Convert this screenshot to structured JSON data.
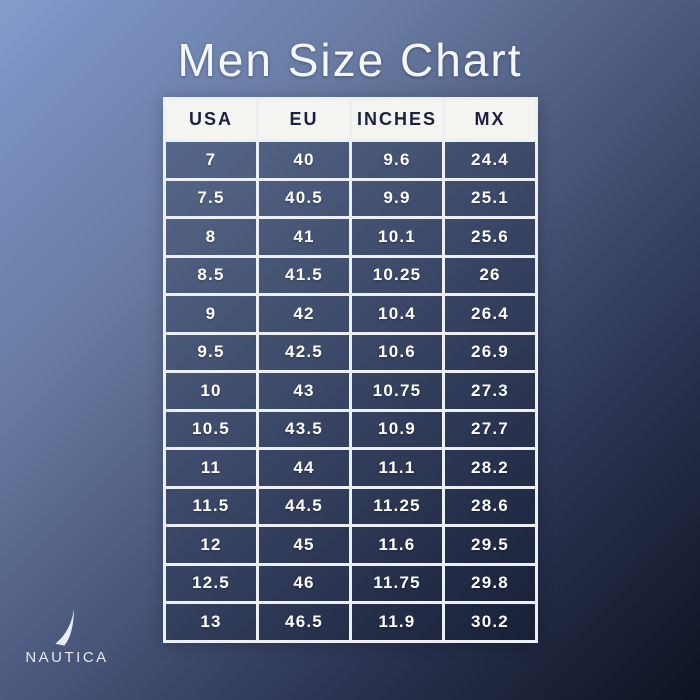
{
  "chart_data": {
    "type": "table",
    "title": "Men Size Chart",
    "columns": [
      "USA",
      "EU",
      "INCHES",
      "MX"
    ],
    "rows": [
      [
        "7",
        "40",
        "9.6",
        "24.4"
      ],
      [
        "7.5",
        "40.5",
        "9.9",
        "25.1"
      ],
      [
        "8",
        "41",
        "10.1",
        "25.6"
      ],
      [
        "8.5",
        "41.5",
        "10.25",
        "26"
      ],
      [
        "9",
        "42",
        "10.4",
        "26.4"
      ],
      [
        "9.5",
        "42.5",
        "10.6",
        "26.9"
      ],
      [
        "10",
        "43",
        "10.75",
        "27.3"
      ],
      [
        "10.5",
        "43.5",
        "10.9",
        "27.7"
      ],
      [
        "11",
        "44",
        "11.1",
        "28.2"
      ],
      [
        "11.5",
        "44.5",
        "11.25",
        "28.6"
      ],
      [
        "12",
        "45",
        "11.6",
        "29.5"
      ],
      [
        "12.5",
        "46",
        "11.75",
        "29.8"
      ],
      [
        "13",
        "46.5",
        "11.9",
        "30.2"
      ]
    ]
  },
  "brand": {
    "name": "NAUTICA",
    "icon": "sail-icon"
  },
  "colors": {
    "background_top_left": "#879ccd",
    "background_bottom_right": "#0d1322",
    "header_bg": "#f4f4f1",
    "header_text": "#1a2240",
    "cell_text": "#ffffff",
    "table_border": "#edf0f3",
    "title_text": "#f3f6fb"
  }
}
